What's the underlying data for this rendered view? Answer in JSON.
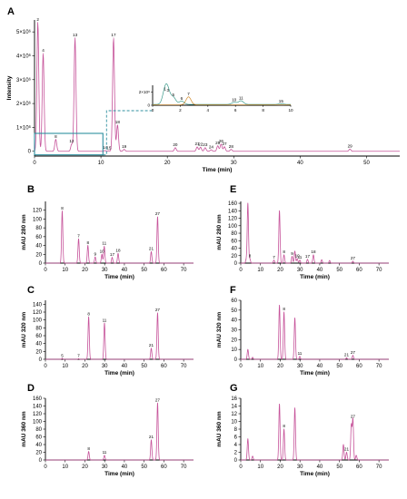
{
  "chart_data": [
    {
      "id": "A",
      "panel_label": "A",
      "type": "line",
      "xlabel": "Time (min)",
      "ylabel": "Intensity",
      "xlim": [
        0,
        55
      ],
      "ylim": [
        -200000,
        5500000
      ],
      "xticks": [
        0,
        10,
        20,
        30,
        40,
        50
      ],
      "yticks": [
        0,
        1000000,
        2000000,
        3000000,
        4000000,
        5000000
      ],
      "ytick_labels": [
        "0",
        "1×10⁶",
        "2×10⁶",
        "3×10⁶",
        "4×10⁶",
        "5×10⁶"
      ],
      "peaks": [
        {
          "t": 0.5,
          "h": 5400000,
          "label": "2"
        },
        {
          "t": 1.3,
          "h": 4100000,
          "label": "4"
        },
        {
          "t": 3.2,
          "h": 500000,
          "label": "8"
        },
        {
          "t": 5.6,
          "h": 300000,
          "label": "12"
        },
        {
          "t": 6.1,
          "h": 4750000,
          "label": "13"
        },
        {
          "t": 10.6,
          "h": 30000,
          "label": "14"
        },
        {
          "t": 11.2,
          "h": 20000,
          "label": "15"
        },
        {
          "t": 11.9,
          "h": 4750000,
          "label": "17"
        },
        {
          "t": 12.5,
          "h": 1100000,
          "label": "18"
        },
        {
          "t": 13.5,
          "h": 80000,
          "label": "19"
        },
        {
          "t": 21.2,
          "h": 150000,
          "label": "20"
        },
        {
          "t": 24.5,
          "h": 180000,
          "label": "21"
        },
        {
          "t": 25.0,
          "h": 170000,
          "label": "22"
        },
        {
          "t": 25.7,
          "h": 150000,
          "label": "23"
        },
        {
          "t": 26.6,
          "h": 60000,
          "label": "24"
        },
        {
          "t": 27.6,
          "h": 230000,
          "label": "25"
        },
        {
          "t": 28.1,
          "h": 300000,
          "label": "26"
        },
        {
          "t": 28.6,
          "h": 190000,
          "label": "27"
        },
        {
          "t": 29.6,
          "h": 80000,
          "label": "28"
        },
        {
          "t": 47.5,
          "h": 90000,
          "label": "29"
        }
      ],
      "inset": {
        "xlim": [
          0,
          10
        ],
        "ylim": [
          0,
          3000000
        ],
        "xticks": [
          0,
          2,
          4,
          6,
          8,
          10
        ],
        "yticks": [
          0,
          2000000
        ],
        "ytick_labels": [
          "0",
          "2×10⁶"
        ],
        "peaks": [
          {
            "t": 0.9,
            "h": 1900000,
            "label": "1",
            "color": "#3a9a8a"
          },
          {
            "t": 1.1,
            "h": 1700000,
            "label": "3",
            "color": "#3a9a8a"
          },
          {
            "t": 1.5,
            "h": 1050000,
            "label": "5",
            "color": "#3a9a8a"
          },
          {
            "t": 2.1,
            "h": 500000,
            "label": "6",
            "color": "#3a9a8a"
          },
          {
            "t": 2.6,
            "h": 1200000,
            "label": "7",
            "color": "#d08a2a"
          },
          {
            "t": 5.9,
            "h": 300000,
            "label": "10",
            "color": "#3a9a8a"
          },
          {
            "t": 6.4,
            "h": 550000,
            "label": "11",
            "color": "#3a9a8a"
          },
          {
            "t": 9.3,
            "h": 100000,
            "label": "15",
            "color": "#3a9a8a"
          }
        ]
      }
    },
    {
      "id": "B",
      "panel_label": "B",
      "type": "line",
      "xlabel": "Time (min)",
      "ylabel": "mAU 280 nm",
      "xlim": [
        0,
        75
      ],
      "ylim": [
        0,
        140
      ],
      "xticks": [
        0,
        10,
        20,
        30,
        40,
        50,
        60,
        70
      ],
      "yticks": [
        0,
        20,
        40,
        60,
        80,
        100,
        120
      ],
      "peaks": [
        {
          "t": 8.5,
          "h": 118,
          "label": "8"
        },
        {
          "t": 16.8,
          "h": 55,
          "label": "7"
        },
        {
          "t": 21.5,
          "h": 40,
          "label": "8"
        },
        {
          "t": 25.2,
          "h": 14,
          "label": "9"
        },
        {
          "t": 28.6,
          "h": 20,
          "label": "10"
        },
        {
          "t": 29.8,
          "h": 38,
          "label": "11"
        },
        {
          "t": 33.8,
          "h": 13,
          "label": "17"
        },
        {
          "t": 36.8,
          "h": 22,
          "label": "18"
        },
        {
          "t": 53.6,
          "h": 26,
          "label": "21"
        },
        {
          "t": 56.8,
          "h": 105,
          "label": "27"
        }
      ]
    },
    {
      "id": "C",
      "panel_label": "C",
      "type": "line",
      "xlabel": "Time (min)",
      "ylabel": "mAU 320 nm",
      "xlim": [
        0,
        75
      ],
      "ylim": [
        0,
        150
      ],
      "xticks": [
        0,
        10,
        20,
        30,
        40,
        50,
        60,
        70
      ],
      "yticks": [
        0,
        20,
        40,
        60,
        80,
        100,
        120,
        140
      ],
      "peaks": [
        {
          "t": 8.5,
          "h": 2,
          "label": "5"
        },
        {
          "t": 16.8,
          "h": 1.5,
          "label": "7"
        },
        {
          "t": 21.9,
          "h": 108,
          "label": "8"
        },
        {
          "t": 29.9,
          "h": 92,
          "label": "11"
        },
        {
          "t": 53.6,
          "h": 28,
          "label": "21"
        },
        {
          "t": 56.8,
          "h": 118,
          "label": "27"
        }
      ]
    },
    {
      "id": "D",
      "panel_label": "D",
      "type": "line",
      "xlabel": "Time (min)",
      "ylabel": "mAU 360 nm",
      "xlim": [
        0,
        75
      ],
      "ylim": [
        0,
        160
      ],
      "xticks": [
        0,
        10,
        20,
        30,
        40,
        50,
        60,
        70
      ],
      "yticks": [
        0,
        20,
        40,
        60,
        80,
        100,
        120,
        140,
        160
      ],
      "peaks": [
        {
          "t": 21.9,
          "h": 22,
          "label": "8"
        },
        {
          "t": 29.9,
          "h": 12,
          "label": "11"
        },
        {
          "t": 53.6,
          "h": 52,
          "label": "21"
        },
        {
          "t": 56.8,
          "h": 148,
          "label": "27"
        }
      ]
    },
    {
      "id": "E",
      "panel_label": "E",
      "type": "line",
      "xlabel": "Time (min)",
      "ylabel": "mAU 280 nm",
      "xlim": [
        0,
        75
      ],
      "ylim": [
        0,
        165
      ],
      "xticks": [
        0,
        10,
        20,
        30,
        40,
        50,
        60,
        70
      ],
      "yticks": [
        0,
        20,
        40,
        60,
        80,
        100,
        120,
        140,
        160
      ],
      "peaks": [
        {
          "t": 2.8,
          "h": 10,
          "label": ""
        },
        {
          "t": 3.6,
          "h": 160,
          "label": ""
        },
        {
          "t": 4.6,
          "h": 12,
          "label": "8"
        },
        {
          "t": 16.8,
          "h": 8,
          "label": "7"
        },
        {
          "t": 19.6,
          "h": 140,
          "label": ""
        },
        {
          "t": 21.9,
          "h": 22,
          "label": "8"
        },
        {
          "t": 26.0,
          "h": 18,
          "label": "9"
        },
        {
          "t": 27.4,
          "h": 32,
          "label": ""
        },
        {
          "t": 28.6,
          "h": 12,
          "label": "10"
        },
        {
          "t": 29.9,
          "h": 8,
          "label": "11"
        },
        {
          "t": 33.8,
          "h": 10,
          "label": "17"
        },
        {
          "t": 36.8,
          "h": 22,
          "label": "18"
        },
        {
          "t": 41.0,
          "h": 9,
          "label": ""
        },
        {
          "t": 45.0,
          "h": 7,
          "label": ""
        },
        {
          "t": 56.8,
          "h": 5,
          "label": "27"
        }
      ]
    },
    {
      "id": "F",
      "panel_label": "F",
      "type": "line",
      "xlabel": "Time (min)",
      "ylabel": "mAU 320 nm",
      "xlim": [
        0,
        75
      ],
      "ylim": [
        0,
        60
      ],
      "xticks": [
        0,
        10,
        20,
        30,
        40,
        50,
        60,
        70
      ],
      "yticks": [
        0,
        10,
        20,
        30,
        40,
        50,
        60
      ],
      "peaks": [
        {
          "t": 3.6,
          "h": 10,
          "label": ""
        },
        {
          "t": 6.0,
          "h": 2,
          "label": ""
        },
        {
          "t": 19.6,
          "h": 55,
          "label": ""
        },
        {
          "t": 21.9,
          "h": 48,
          "label": "8"
        },
        {
          "t": 27.4,
          "h": 42,
          "label": ""
        },
        {
          "t": 29.9,
          "h": 3,
          "label": "11"
        },
        {
          "t": 53.6,
          "h": 1.5,
          "label": "21"
        },
        {
          "t": 56.8,
          "h": 4,
          "label": "27"
        }
      ]
    },
    {
      "id": "G",
      "panel_label": "G",
      "type": "line",
      "xlabel": "Time (min)",
      "ylabel": "mAU 360 nm",
      "xlim": [
        0,
        75
      ],
      "ylim": [
        0,
        16
      ],
      "xticks": [
        0,
        10,
        20,
        30,
        40,
        50,
        60,
        70
      ],
      "yticks": [
        0,
        2,
        4,
        6,
        8,
        10,
        12,
        14,
        16
      ],
      "peaks": [
        {
          "t": 3.6,
          "h": 5.5,
          "label": ""
        },
        {
          "t": 6.0,
          "h": 1,
          "label": ""
        },
        {
          "t": 19.6,
          "h": 14.5,
          "label": ""
        },
        {
          "t": 21.9,
          "h": 8,
          "label": "8"
        },
        {
          "t": 27.4,
          "h": 13.5,
          "label": ""
        },
        {
          "t": 52.0,
          "h": 4,
          "label": ""
        },
        {
          "t": 53.6,
          "h": 2,
          "label": "21"
        },
        {
          "t": 56.0,
          "h": 9,
          "label": ""
        },
        {
          "t": 56.8,
          "h": 10.5,
          "label": "27"
        },
        {
          "t": 58.5,
          "h": 1.2,
          "label": ""
        }
      ]
    }
  ],
  "colors": {
    "trace": "#c6539a",
    "inset_trace_teal": "#3a9a8a",
    "inset_trace_orange": "#d08a2a",
    "zoom_box": "#2f8f9f"
  }
}
